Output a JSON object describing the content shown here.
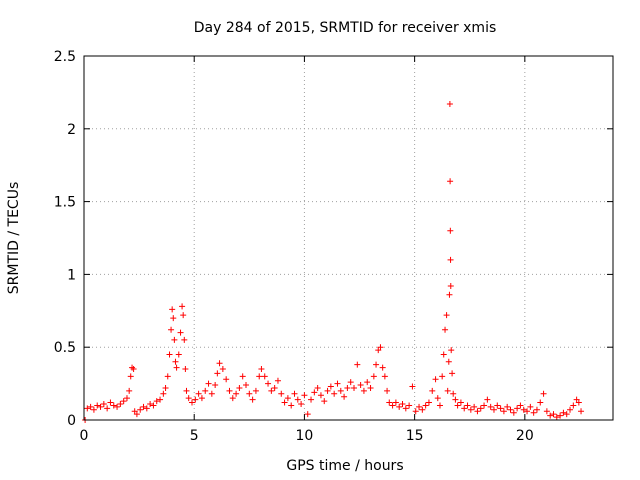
{
  "chart_data": {
    "type": "scatter",
    "title": "Day 284 of 2015, SRMTID for receiver xmis",
    "xlabel": "GPS time / hours",
    "ylabel": "SRMTID / TECUs",
    "xlim": [
      0,
      24
    ],
    "ylim": [
      0,
      2.5
    ],
    "xticks": [
      0,
      5,
      10,
      15,
      20
    ],
    "xtick_labels": [
      "0",
      "5",
      "10",
      "15",
      "20"
    ],
    "yticks": [
      0,
      0.5,
      1,
      1.5,
      2,
      2.5
    ],
    "ytick_labels": [
      "0",
      "0.5",
      "1",
      "1.5",
      "2",
      "2.5"
    ],
    "grid": true,
    "marker": "+",
    "series": [
      {
        "name": "SRMTID",
        "color": "#ff0000",
        "points": [
          [
            0.05,
            0.0
          ],
          [
            0.15,
            0.08
          ],
          [
            0.3,
            0.09
          ],
          [
            0.45,
            0.07
          ],
          [
            0.6,
            0.1
          ],
          [
            0.75,
            0.09
          ],
          [
            0.9,
            0.11
          ],
          [
            1.05,
            0.08
          ],
          [
            1.2,
            0.12
          ],
          [
            1.35,
            0.1
          ],
          [
            1.5,
            0.09
          ],
          [
            1.65,
            0.11
          ],
          [
            1.8,
            0.13
          ],
          [
            1.95,
            0.15
          ],
          [
            2.05,
            0.2
          ],
          [
            2.12,
            0.3
          ],
          [
            2.18,
            0.36
          ],
          [
            2.25,
            0.35
          ],
          [
            2.3,
            0.06
          ],
          [
            2.4,
            0.04
          ],
          [
            2.55,
            0.07
          ],
          [
            2.7,
            0.09
          ],
          [
            2.85,
            0.08
          ],
          [
            3.0,
            0.11
          ],
          [
            3.15,
            0.1
          ],
          [
            3.3,
            0.13
          ],
          [
            3.45,
            0.14
          ],
          [
            3.6,
            0.18
          ],
          [
            3.7,
            0.22
          ],
          [
            3.8,
            0.3
          ],
          [
            3.88,
            0.45
          ],
          [
            3.95,
            0.62
          ],
          [
            4.0,
            0.76
          ],
          [
            4.05,
            0.7
          ],
          [
            4.1,
            0.55
          ],
          [
            4.15,
            0.4
          ],
          [
            4.2,
            0.36
          ],
          [
            4.3,
            0.45
          ],
          [
            4.38,
            0.6
          ],
          [
            4.45,
            0.78
          ],
          [
            4.5,
            0.72
          ],
          [
            4.55,
            0.55
          ],
          [
            4.6,
            0.35
          ],
          [
            4.65,
            0.2
          ],
          [
            4.75,
            0.15
          ],
          [
            4.9,
            0.12
          ],
          [
            5.05,
            0.14
          ],
          [
            5.2,
            0.18
          ],
          [
            5.35,
            0.15
          ],
          [
            5.5,
            0.2
          ],
          [
            5.65,
            0.25
          ],
          [
            5.8,
            0.18
          ],
          [
            5.95,
            0.24
          ],
          [
            6.05,
            0.32
          ],
          [
            6.15,
            0.39
          ],
          [
            6.3,
            0.35
          ],
          [
            6.45,
            0.28
          ],
          [
            6.6,
            0.2
          ],
          [
            6.75,
            0.15
          ],
          [
            6.9,
            0.18
          ],
          [
            7.05,
            0.22
          ],
          [
            7.2,
            0.3
          ],
          [
            7.35,
            0.24
          ],
          [
            7.5,
            0.18
          ],
          [
            7.65,
            0.14
          ],
          [
            7.8,
            0.2
          ],
          [
            7.95,
            0.3
          ],
          [
            8.05,
            0.35
          ],
          [
            8.2,
            0.3
          ],
          [
            8.35,
            0.25
          ],
          [
            8.5,
            0.2
          ],
          [
            8.65,
            0.22
          ],
          [
            8.8,
            0.27
          ],
          [
            8.95,
            0.18
          ],
          [
            9.1,
            0.12
          ],
          [
            9.25,
            0.15
          ],
          [
            9.4,
            0.1
          ],
          [
            9.55,
            0.18
          ],
          [
            9.7,
            0.14
          ],
          [
            9.85,
            0.11
          ],
          [
            10.0,
            0.17
          ],
          [
            10.15,
            0.04
          ],
          [
            10.3,
            0.14
          ],
          [
            10.45,
            0.19
          ],
          [
            10.6,
            0.22
          ],
          [
            10.75,
            0.17
          ],
          [
            10.9,
            0.13
          ],
          [
            11.05,
            0.2
          ],
          [
            11.2,
            0.23
          ],
          [
            11.35,
            0.18
          ],
          [
            11.5,
            0.25
          ],
          [
            11.65,
            0.2
          ],
          [
            11.8,
            0.16
          ],
          [
            11.95,
            0.22
          ],
          [
            12.1,
            0.26
          ],
          [
            12.25,
            0.22
          ],
          [
            12.4,
            0.38
          ],
          [
            12.55,
            0.24
          ],
          [
            12.7,
            0.2
          ],
          [
            12.85,
            0.26
          ],
          [
            13.0,
            0.22
          ],
          [
            13.15,
            0.3
          ],
          [
            13.25,
            0.38
          ],
          [
            13.35,
            0.48
          ],
          [
            13.45,
            0.5
          ],
          [
            13.55,
            0.36
          ],
          [
            13.65,
            0.3
          ],
          [
            13.75,
            0.2
          ],
          [
            13.85,
            0.12
          ],
          [
            14.0,
            0.1
          ],
          [
            14.15,
            0.12
          ],
          [
            14.3,
            0.09
          ],
          [
            14.45,
            0.11
          ],
          [
            14.6,
            0.08
          ],
          [
            14.75,
            0.1
          ],
          [
            14.9,
            0.23
          ],
          [
            15.05,
            0.06
          ],
          [
            15.2,
            0.09
          ],
          [
            15.35,
            0.07
          ],
          [
            15.5,
            0.1
          ],
          [
            15.65,
            0.12
          ],
          [
            15.8,
            0.2
          ],
          [
            15.95,
            0.28
          ],
          [
            16.05,
            0.15
          ],
          [
            16.15,
            0.1
          ],
          [
            16.25,
            0.3
          ],
          [
            16.32,
            0.45
          ],
          [
            16.38,
            0.62
          ],
          [
            16.45,
            0.72
          ],
          [
            16.5,
            0.2
          ],
          [
            16.55,
            0.4
          ],
          [
            16.58,
            0.86
          ],
          [
            16.6,
            2.17
          ],
          [
            16.61,
            1.64
          ],
          [
            16.62,
            1.3
          ],
          [
            16.63,
            1.1
          ],
          [
            16.64,
            0.92
          ],
          [
            16.66,
            0.48
          ],
          [
            16.7,
            0.32
          ],
          [
            16.75,
            0.18
          ],
          [
            16.85,
            0.14
          ],
          [
            16.95,
            0.1
          ],
          [
            17.1,
            0.12
          ],
          [
            17.25,
            0.08
          ],
          [
            17.4,
            0.1
          ],
          [
            17.55,
            0.07
          ],
          [
            17.7,
            0.09
          ],
          [
            17.85,
            0.06
          ],
          [
            18.0,
            0.08
          ],
          [
            18.15,
            0.1
          ],
          [
            18.3,
            0.14
          ],
          [
            18.45,
            0.09
          ],
          [
            18.6,
            0.07
          ],
          [
            18.75,
            0.1
          ],
          [
            18.9,
            0.08
          ],
          [
            19.05,
            0.06
          ],
          [
            19.2,
            0.09
          ],
          [
            19.35,
            0.07
          ],
          [
            19.5,
            0.05
          ],
          [
            19.65,
            0.08
          ],
          [
            19.8,
            0.1
          ],
          [
            19.95,
            0.07
          ],
          [
            20.1,
            0.06
          ],
          [
            20.25,
            0.09
          ],
          [
            20.4,
            0.05
          ],
          [
            20.55,
            0.07
          ],
          [
            20.7,
            0.12
          ],
          [
            20.85,
            0.18
          ],
          [
            21.0,
            0.06
          ],
          [
            21.15,
            0.03
          ],
          [
            21.3,
            0.04
          ],
          [
            21.45,
            0.02
          ],
          [
            21.6,
            0.03
          ],
          [
            21.75,
            0.05
          ],
          [
            21.9,
            0.04
          ],
          [
            22.05,
            0.07
          ],
          [
            22.2,
            0.1
          ],
          [
            22.35,
            0.14
          ],
          [
            22.45,
            0.12
          ],
          [
            22.55,
            0.06
          ]
        ]
      }
    ]
  }
}
